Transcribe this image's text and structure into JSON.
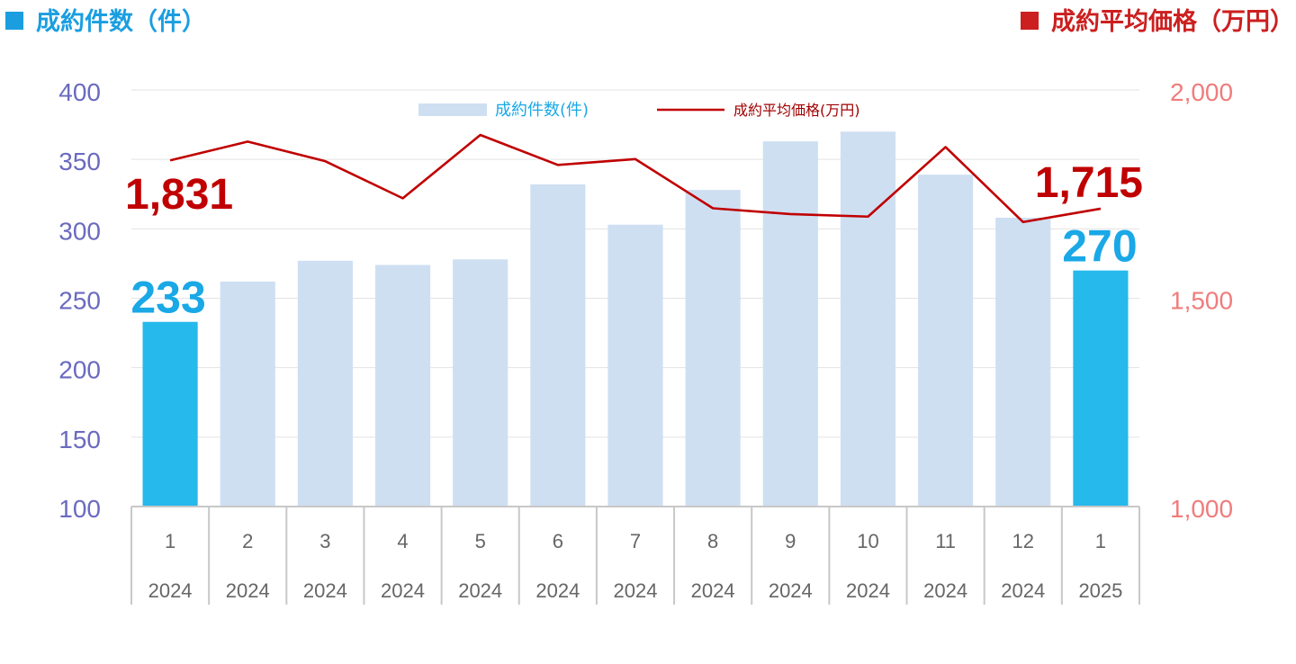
{
  "header": {
    "left_title": "成約件数（件）",
    "right_title": "成約平均価格（万円）"
  },
  "chart_data": {
    "type": "bar+line",
    "categories": [
      {
        "month": "1",
        "year": "2024"
      },
      {
        "month": "2",
        "year": "2024"
      },
      {
        "month": "3",
        "year": "2024"
      },
      {
        "month": "4",
        "year": "2024"
      },
      {
        "month": "5",
        "year": "2024"
      },
      {
        "month": "6",
        "year": "2024"
      },
      {
        "month": "7",
        "year": "2024"
      },
      {
        "month": "8",
        "year": "2024"
      },
      {
        "month": "9",
        "year": "2024"
      },
      {
        "month": "10",
        "year": "2024"
      },
      {
        "month": "11",
        "year": "2024"
      },
      {
        "month": "12",
        "year": "2024"
      },
      {
        "month": "1",
        "year": "2025"
      }
    ],
    "series": [
      {
        "name": "成約件数(件)",
        "type": "bar",
        "axis": "left",
        "values": [
          233,
          262,
          277,
          274,
          278,
          332,
          303,
          328,
          363,
          370,
          339,
          308,
          270
        ],
        "highlight_indices": [
          0,
          12
        ]
      },
      {
        "name": "成約平均価格(万円)",
        "type": "line",
        "axis": "right",
        "values": [
          1831,
          1876,
          1829,
          1740,
          1892,
          1820,
          1834,
          1716,
          1702,
          1696,
          1863,
          1683,
          1715
        ]
      }
    ],
    "left_axis": {
      "min": 100,
      "max": 400,
      "ticks": [
        "100",
        "150",
        "200",
        "250",
        "300",
        "350",
        "400"
      ]
    },
    "right_axis": {
      "min": 1000,
      "max": 2000,
      "ticks": [
        "1,000",
        "1,500",
        "2,000"
      ]
    },
    "data_labels": {
      "first_count": "233",
      "last_count": "270",
      "first_price": "1,831",
      "last_price": "1,715"
    },
    "grid": true,
    "legend_position": "top-center",
    "colors": {
      "bar": "#cfdff2",
      "bar_highlight": "#26b9ec",
      "line": "#c00000",
      "left_axis_text": "#6a6ac0",
      "right_axis_text": "#f07c7c",
      "count_label": "#1aa8e6",
      "price_label": "#c00000",
      "category_text": "#666666"
    }
  }
}
